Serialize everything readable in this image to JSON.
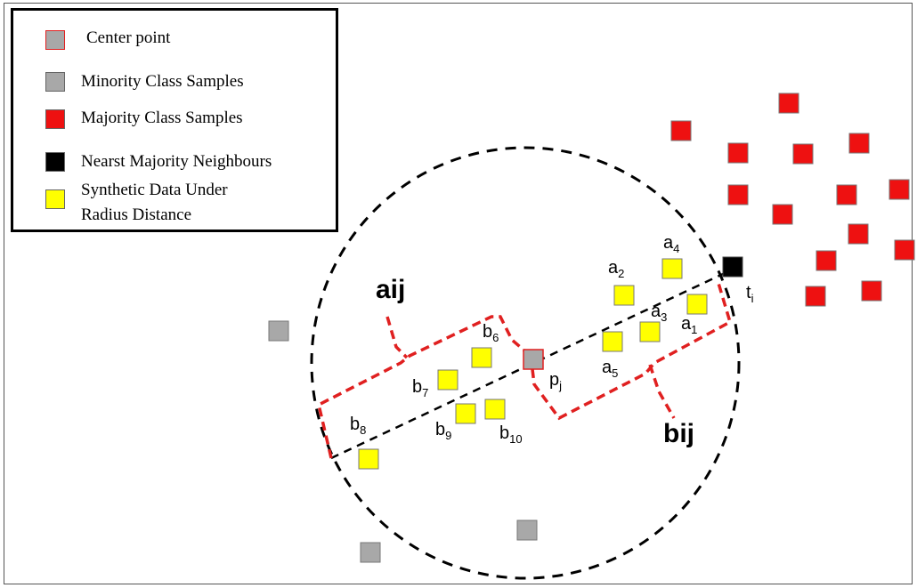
{
  "legend": {
    "items": [
      {
        "label": "Center point",
        "color": "#a8a8a8",
        "border": "#e02020"
      },
      {
        "label": "Minority Class Samples",
        "color": "#a8a8a8",
        "border": "#777777"
      },
      {
        "label": "Majority Class Samples",
        "color": "#ee1111",
        "border": "#777777"
      },
      {
        "label": "Nearst Majority Neighbours",
        "color": "#000000",
        "border": "#444444"
      },
      {
        "label_line1": "Synthetic Data Under",
        "label_line2": "Radius Distance",
        "color": "#ffff00",
        "border": "#777777"
      }
    ]
  },
  "labels": {
    "aij": "aij",
    "bij": "bij",
    "a1": {
      "base": "a",
      "sub": "1"
    },
    "a2": {
      "base": "a",
      "sub": "2"
    },
    "a3": {
      "base": "a",
      "sub": "3"
    },
    "a4": {
      "base": "a",
      "sub": "4"
    },
    "a5": {
      "base": "a",
      "sub": "5"
    },
    "b6": {
      "base": "b",
      "sub": "6"
    },
    "b7": {
      "base": "b",
      "sub": "7"
    },
    "b8": {
      "base": "b",
      "sub": "8"
    },
    "b9": {
      "base": "b",
      "sub": "9"
    },
    "b10": {
      "base": "b",
      "sub": "10"
    },
    "pj": {
      "base": "p",
      "sub": "j"
    },
    "ti": {
      "base": "t",
      "sub": "i"
    }
  },
  "colors": {
    "majority": "#ee1111",
    "minority": "#a8a8a8",
    "synthetic": "#ffff00",
    "nearest": "#000000",
    "boundary": "#e02020",
    "circle": "#000000"
  }
}
